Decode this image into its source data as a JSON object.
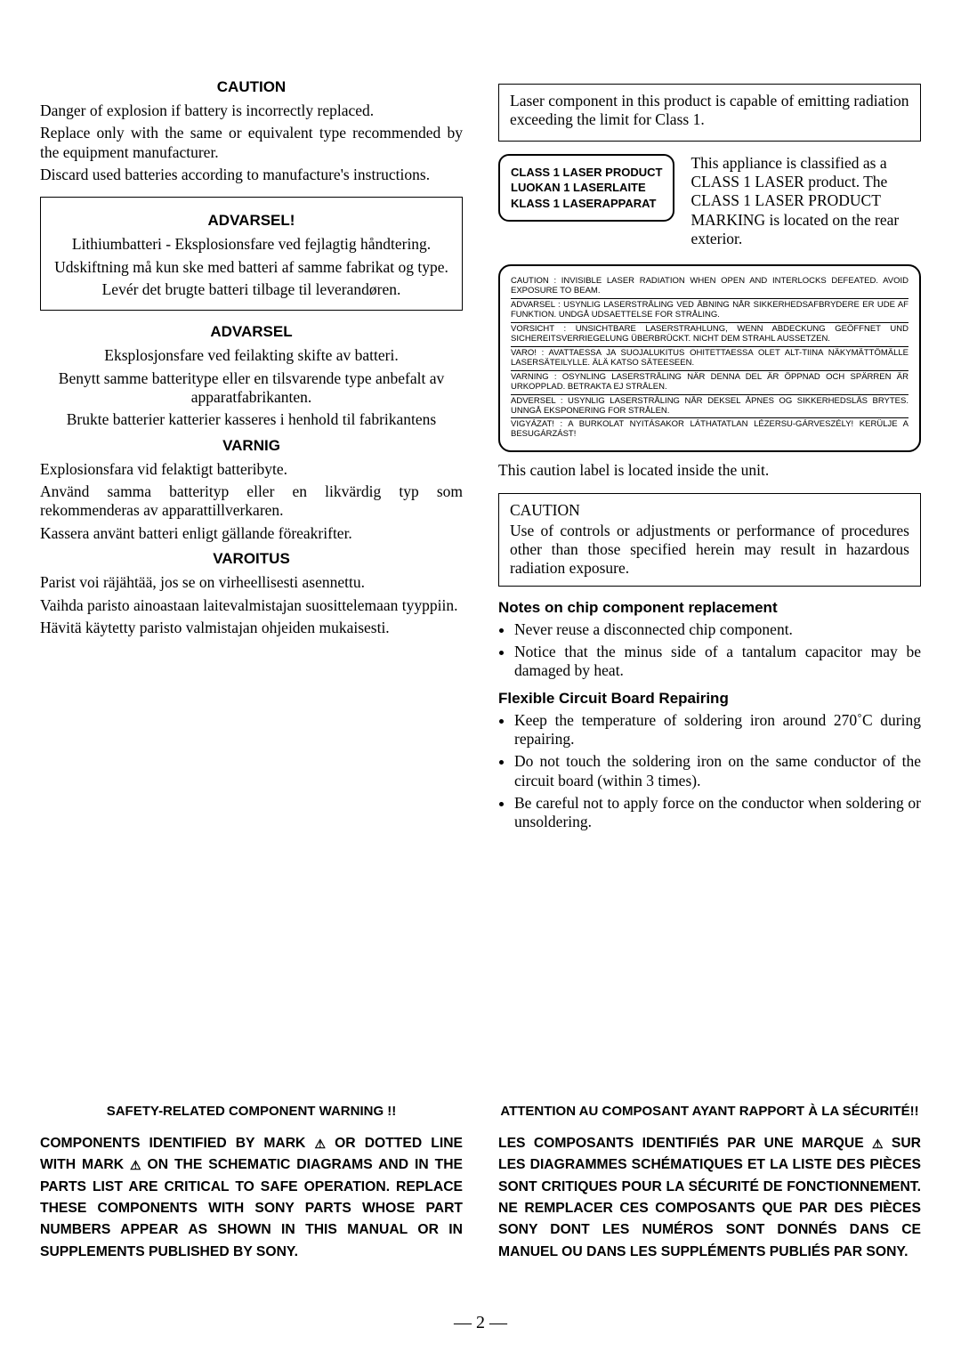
{
  "left": {
    "caution_title": "CAUTION",
    "caution_p1": "Danger of explosion if battery is incorrectly replaced.",
    "caution_p2": "Replace only with the same or equivalent type recommended by the equipment manufacturer.",
    "caution_p3": "Discard used batteries according to manufacture's instructions.",
    "advarsel1_title": "ADVARSEL!",
    "advarsel1_p1": "Lithiumbatteri - Eksplosionsfare ved fejlagtig håndtering.",
    "advarsel1_p2": "Udskiftning må kun ske med batteri af samme fabrikat og type.",
    "advarsel1_p3": "Levér det brugte batteri tilbage til leverandøren.",
    "advarsel2_title": "ADVARSEL",
    "advarsel2_p1": "Eksplosjonsfare ved feilakting skifte av batteri.",
    "advarsel2_p2": "Benytt samme batteritype eller en tilsvarende type anbefalt av apparatfabrikanten.",
    "advarsel2_p3": "Brukte batterier katterier kasseres i henhold til fabrikantens",
    "varnig_title": "VARNIG",
    "varnig_p1": "Explosionsfara vid felaktigt batteribyte.",
    "varnig_p2": "Använd samma batterityp eller en likvärdig typ som rekommenderas av apparattillverkaren.",
    "varnig_p3": "Kassera använt batteri enligt gällande föreakrifter.",
    "varoitus_title": "VAROITUS",
    "varoitus_p1": "Parist voi räjähtää, jos se on virheellisesti asennettu.",
    "varoitus_p2": "Vaihda paristo ainoastaan laitevalmistajan suosittelemaan tyyppiin.",
    "varoitus_p3": "Hävitä käytetty paristo valmistajan ohjeiden mukaisesti."
  },
  "right": {
    "laser_note": "Laser component in this product is capable of emitting radiation exceeding the limit for Class 1.",
    "laser_label_l1": "CLASS 1 LASER PRODUCT",
    "laser_label_l2": "LUOKAN 1 LASERLAITE",
    "laser_label_l3": "KLASS 1 LASERAPPARAT",
    "laser_desc": "This appliance is classified as a CLASS 1 LASER product. The CLASS 1 LASER PRODUCT MARKING is located on the rear exterior.",
    "panel": {
      "e1": "CAUTION : INVISIBLE LASER RADIATION WHEN OPEN AND INTERLOCKS DEFEATED. AVOID EXPOSURE TO BEAM.",
      "e2": "ADVARSEL : USYNLIG LASERSTRÅLING VED ÅBNING NÅR SIKKERHEDSAFBRYDERE ER UDE AF FUNKTION. UNDGÅ UDSAETTELSE FOR STRÅLING.",
      "e3": "VORSICHT : UNSICHTBARE LASERSTRAHLUNG, WENN ABDECKUNG GEÖFFNET UND SICHEREITSVERRIEGELUNG ÜBERBRÜCKT. NICHT DEM STRAHL AUSSETZEN.",
      "e4": "VARO! : AVATTAESSA JA SUOJALUKITUS OHITETTAESSA OLET ALT-TIINA NÄKYMÄTTÖMÄLLE LASERSÄTEILYLLE. ÄLÄ KATSO SÄTEESEEN.",
      "e5": "VARNING : OSYNLING LASERSTRÅLING NÄR DENNA DEL ÄR ÖPPNAD OCH SPÄRREN ÄR URKOPPLAD. BETRAKTA EJ STRÅLEN.",
      "e6": "ADVERSEL : USYNLIG LASERSTRÅLING NÅR DEKSEL ÅPNES OG SIKKERHEDSLÅS BRYTES. UNNGÅ EKSPONERING FOR STRÅLEN.",
      "e7": "VIGYÁZAT! : A BURKOLAT NYITÁSAKOR LÁTHATATLAN LÉZERSU-GÁRVESZÉLY! KERÜLJE A BESUGÁRZÁST!"
    },
    "panel_below": "This caution label is located inside the unit.",
    "caution2_head": "CAUTION",
    "caution2_body": "Use of controls or adjustments or performance of procedures other than those specified herein may result in hazardous radiation exposure.",
    "chip_title": "Notes on chip component replacement",
    "chip_b1": "Never reuse a disconnected chip component.",
    "chip_b2": "Notice that the minus side of a tantalum capacitor may be damaged by heat.",
    "flex_title": "Flexible Circuit Board Repairing",
    "flex_b1": "Keep the temperature of soldering iron around 270˚C during repairing.",
    "flex_b2": "Do not touch the soldering iron on the same conductor of the circuit board (within 3 times).",
    "flex_b3": "Be careful not to apply force on the conductor when soldering or unsoldering."
  },
  "bottom": {
    "en_title": "SAFETY-RELATED COMPONENT WARNING !!",
    "en_pre": "COMPONENTS IDENTIFIED BY MARK ",
    "en_mid": " OR DOTTED LINE WITH MARK ",
    "en_post": " ON THE SCHEMATIC DIAGRAMS AND IN THE PARTS LIST ARE CRITICAL TO SAFE OPERATION. REPLACE THESE COMPONENTS WITH SONY PARTS WHOSE PART NUMBERS APPEAR AS SHOWN IN THIS MANUAL OR IN SUPPLEMENTS PUBLISHED BY SONY.",
    "fr_title": "ATTENTION AU COMPOSANT AYANT RAPPORT À LA SÉCURITÉ!!",
    "fr_pre": "LES COMPOSANTS IDENTIFIÉS PAR UNE MARQUE ",
    "fr_post": " SUR LES DIAGRAMMES SCHÉMATIQUES ET LA LISTE DES PIÈCES SONT CRITIQUES POUR LA SÉCURITÉ DE FONCTIONNEMENT. NE REMPLACER CES COMPOSANTS QUE PAR DES PIÈCES SONY DONT LES NUMÉROS SONT DONNÉS DANS CE MANUEL OU DANS LES SUPPLÉMENTS PUBLIÉS PAR SONY."
  },
  "pagenum": "— 2 —",
  "tri": "⚠"
}
